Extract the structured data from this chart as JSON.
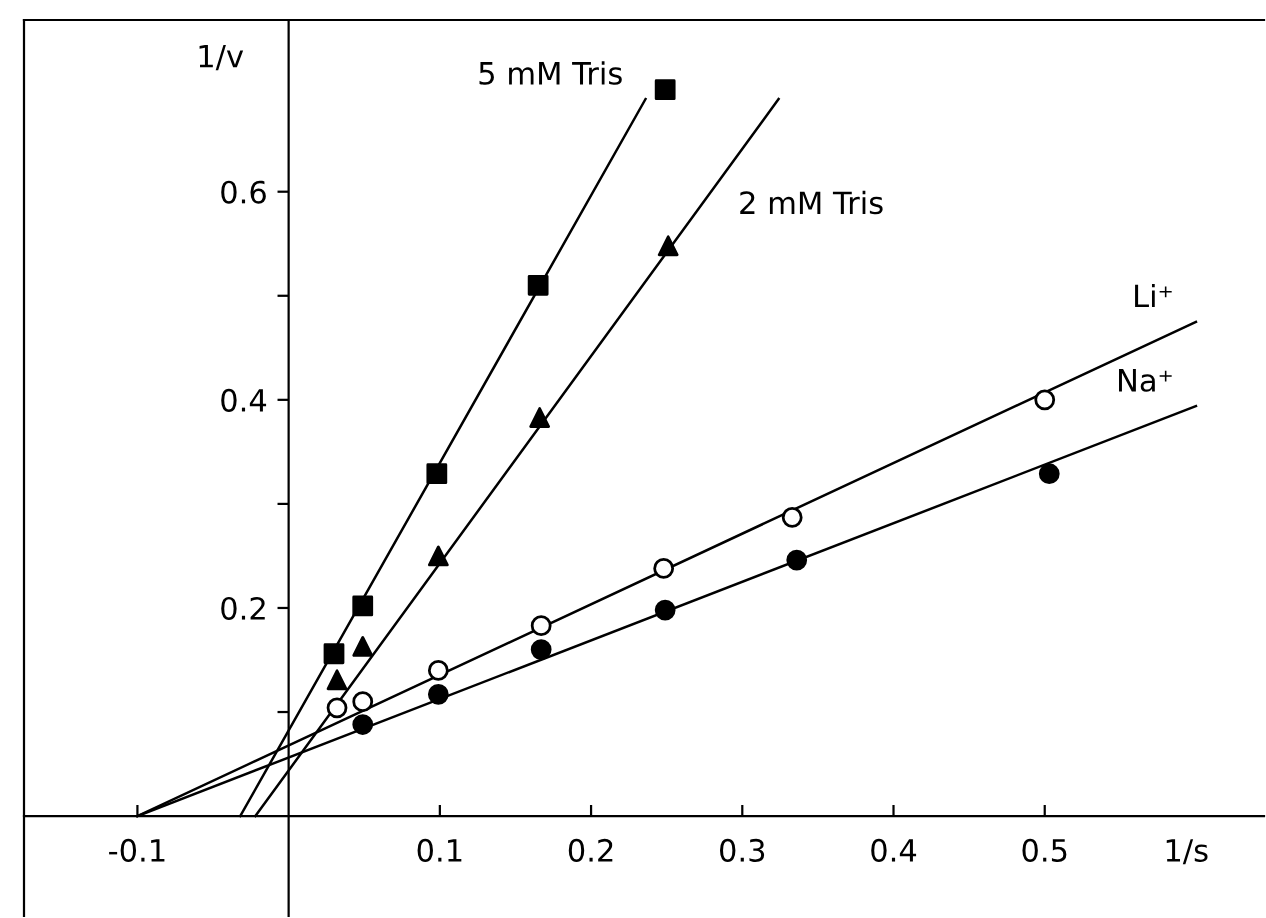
{
  "chart_data": {
    "type": "scatter",
    "xlabel": "1/s",
    "ylabel": "1/v",
    "xlim": [
      -0.175,
      0.645
    ],
    "ylim": [
      -0.096,
      0.765
    ],
    "xticks": [
      {
        "value": -0.1,
        "label": "-0.1"
      },
      0.1,
      0.2,
      0.3,
      0.4,
      0.5
    ],
    "yticks": [
      {
        "value": 0.1,
        "label": null
      },
      0.2,
      {
        "value": 0.3,
        "label": null
      },
      0.4,
      {
        "value": 0.5,
        "label": null
      },
      0.6
    ],
    "grid": false,
    "legend": false,
    "series": [
      {
        "marker": "square",
        "color": "#000000",
        "x": [
          0.03,
          0.049,
          0.098,
          0.165,
          0.249
        ],
        "values": [
          0.156,
          0.202,
          0.329,
          0.51,
          0.698
        ]
      },
      {
        "marker": "triangle",
        "color": "#000000",
        "x": [
          0.032,
          0.049,
          0.099,
          0.166,
          0.251
        ],
        "values": [
          0.131,
          0.163,
          0.25,
          0.383,
          0.548
        ]
      },
      {
        "marker": "circle",
        "color": "#ffffff",
        "x": [
          0.032,
          0.049,
          0.099,
          0.167,
          0.248,
          0.333,
          0.5
        ],
        "values": [
          0.104,
          0.11,
          0.14,
          0.183,
          0.238,
          0.287,
          0.4
        ]
      },
      {
        "marker": "circle",
        "color": "#000000",
        "x": [
          0.049,
          0.099,
          0.167,
          0.249,
          0.336,
          0.503
        ],
        "values": [
          0.088,
          0.117,
          0.16,
          0.198,
          0.246,
          0.329
        ]
      },
      {
        "type": "line",
        "name": "5 mM Tris",
        "color": "#000000",
        "x": [
          -0.032,
          0.236
        ],
        "values": [
          0,
          0.689
        ]
      },
      {
        "type": "line",
        "name": "2 mM Tris",
        "color": "#000000",
        "x": [
          -0.022,
          0.324
        ],
        "values": [
          0,
          0.689
        ]
      },
      {
        "type": "line",
        "name": "Li⁺",
        "color": "#000000",
        "x": [
          -0.1,
          0.6
        ],
        "values": [
          0,
          0.475
        ]
      },
      {
        "type": "line",
        "name": "Na⁺",
        "color": "#000000",
        "x": [
          -0.1,
          0.6
        ],
        "values": [
          0,
          0.394
        ]
      }
    ]
  }
}
